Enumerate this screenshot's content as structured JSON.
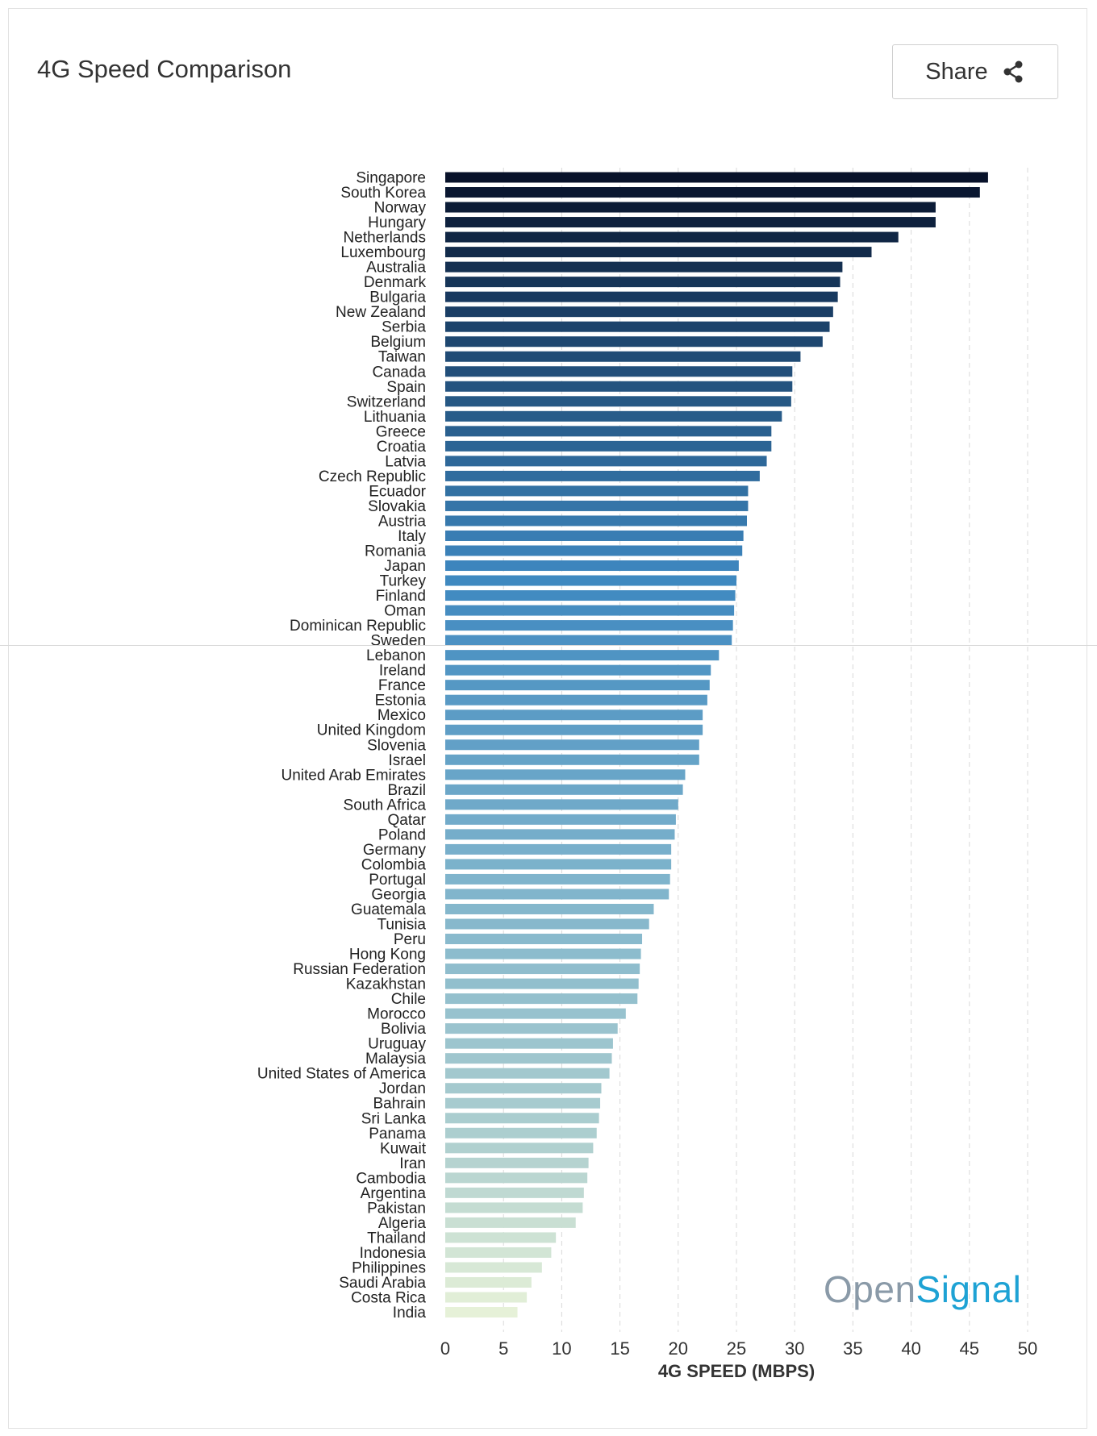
{
  "header": {
    "title": "4G Speed Comparison",
    "share_label": "Share"
  },
  "brand": {
    "part1": "Open",
    "part2": "Signal"
  },
  "colors": {
    "bar_dark": "#08122a",
    "bar_mid": "#3e88c0",
    "bar_light": "#e6f1d8",
    "brand_grey": "#8a9aa8",
    "brand_blue": "#1ea2d4"
  },
  "icons": {
    "share": "share-icon"
  },
  "chart_data": {
    "type": "bar",
    "orientation": "horizontal",
    "title": "4G Speed Comparison",
    "xlabel": "4G SPEED (MBPS)",
    "ylabel": "",
    "xlim": [
      0,
      50
    ],
    "xticks": [
      0,
      5,
      10,
      15,
      20,
      25,
      30,
      35,
      40,
      45,
      50
    ],
    "grid": "vertical dashed",
    "legend": "none",
    "categories": [
      "Singapore",
      "South Korea",
      "Norway",
      "Hungary",
      "Netherlands",
      "Luxembourg",
      "Australia",
      "Denmark",
      "Bulgaria",
      "New Zealand",
      "Serbia",
      "Belgium",
      "Taiwan",
      "Canada",
      "Spain",
      "Switzerland",
      "Lithuania",
      "Greece",
      "Croatia",
      "Latvia",
      "Czech Republic",
      "Ecuador",
      "Slovakia",
      "Austria",
      "Italy",
      "Romania",
      "Japan",
      "Turkey",
      "Finland",
      "Oman",
      "Dominican Republic",
      "Sweden",
      "Lebanon",
      "Ireland",
      "France",
      "Estonia",
      "Mexico",
      "United Kingdom",
      "Slovenia",
      "Israel",
      "United Arab Emirates",
      "Brazil",
      "South Africa",
      "Qatar",
      "Poland",
      "Germany",
      "Colombia",
      "Portugal",
      "Georgia",
      "Guatemala",
      "Tunisia",
      "Peru",
      "Hong Kong",
      "Russian Federation",
      "Kazakhstan",
      "Chile",
      "Morocco",
      "Bolivia",
      "Uruguay",
      "Malaysia",
      "United States of America",
      "Jordan",
      "Bahrain",
      "Sri Lanka",
      "Panama",
      "Kuwait",
      "Iran",
      "Cambodia",
      "Argentina",
      "Pakistan",
      "Algeria",
      "Thailand",
      "Indonesia",
      "Philippines",
      "Saudi Arabia",
      "Costa Rica",
      "India"
    ],
    "values": [
      46.6,
      45.9,
      42.1,
      42.1,
      38.9,
      36.6,
      34.1,
      33.9,
      33.7,
      33.3,
      33.0,
      32.4,
      30.5,
      29.8,
      29.8,
      29.7,
      28.9,
      28.0,
      28.0,
      27.6,
      27.0,
      26.0,
      26.0,
      25.9,
      25.6,
      25.5,
      25.2,
      25.0,
      24.9,
      24.8,
      24.7,
      24.6,
      23.5,
      22.8,
      22.7,
      22.5,
      22.1,
      22.1,
      21.8,
      21.8,
      20.6,
      20.4,
      20.0,
      19.8,
      19.7,
      19.4,
      19.4,
      19.3,
      19.2,
      17.9,
      17.5,
      16.9,
      16.8,
      16.7,
      16.6,
      16.5,
      15.5,
      14.8,
      14.4,
      14.3,
      14.1,
      13.4,
      13.3,
      13.2,
      13.0,
      12.7,
      12.3,
      12.2,
      11.9,
      11.8,
      11.2,
      9.5,
      9.1,
      8.3,
      7.4,
      7.0,
      6.2
    ]
  }
}
